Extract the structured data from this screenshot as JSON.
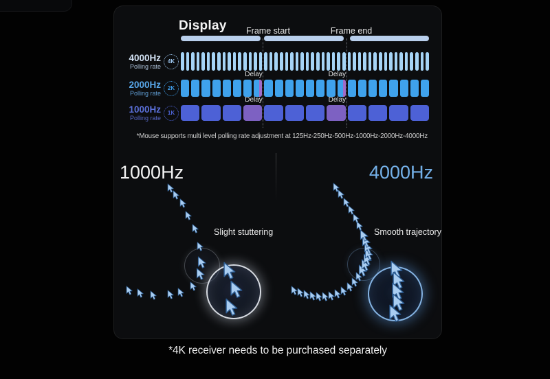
{
  "diagram": {
    "display_label": "Display",
    "frame_start_label": "Frame start",
    "frame_end_label": "Frame end",
    "delay_label": "Delay",
    "display_bar_color": "#b9cfec",
    "footnote": "*Mouse supports multi level polling rate adjustment at 125Hz-250Hz-500Hz-1000Hz-2000Hz-4000Hz",
    "rows": [
      {
        "rate": "4000Hz",
        "sub": "Polling rate",
        "badge": "4K",
        "bar_count": 48,
        "bar_color": "#a6d4f6",
        "label_color": "#d3e2f4",
        "sub_color": "#a9bed6",
        "badge_color": "#9cc6f0",
        "delay_full": [],
        "delay_edge": [],
        "delay_color": "",
        "delay_labels": false
      },
      {
        "rate": "2000Hz",
        "sub": "Polling rate",
        "badge": "2K",
        "bar_count": 24,
        "bar_color": "#3fa2ec",
        "label_color": "#58a7ea",
        "sub_color": "#5f9cd2",
        "badge_color": "#3e9ce8",
        "delay_full": [],
        "delay_edge": [
          7,
          15
        ],
        "delay_color": "#a06cc8",
        "delay_labels": true
      },
      {
        "rate": "1000Hz",
        "sub": "Polling rate",
        "badge": "1K",
        "bar_count": 12,
        "bar_color": "#4d61d6",
        "label_color": "#5b70da",
        "sub_color": "#5767c6",
        "badge_color": "#4d63d6",
        "delay_full": [
          3,
          7
        ],
        "delay_edge": [],
        "delay_color": "#7d61c2",
        "delay_labels": true
      }
    ]
  },
  "compare": {
    "left": {
      "title": "1000Hz",
      "title_color": "#f2f2f2",
      "caption": "Slight stuttering",
      "trail": [
        [
          22,
          207,
          "s"
        ],
        [
          38,
          211,
          "s"
        ],
        [
          57,
          214,
          "s"
        ],
        [
          82,
          213,
          "s"
        ],
        [
          97,
          210,
          "s"
        ],
        [
          115,
          201,
          "s"
        ],
        [
          125,
          183,
          "m"
        ],
        [
          127,
          166,
          "m"
        ],
        [
          125,
          143,
          "s"
        ],
        [
          118,
          117,
          "s"
        ],
        [
          108,
          98,
          "s"
        ],
        [
          100,
          80,
          "s"
        ],
        [
          90,
          68,
          "s"
        ],
        [
          82,
          58,
          "s"
        ]
      ],
      "zoom_cursors": [
        [
          167,
          178
        ],
        [
          177,
          205
        ],
        [
          170,
          231
        ]
      ]
    },
    "right": {
      "title": "4000Hz",
      "title_color": "#74b0e8",
      "caption": "Smooth trajectory",
      "trail": [
        [
          262,
          207,
          "s"
        ],
        [
          271,
          210,
          "s"
        ],
        [
          280,
          213,
          "s"
        ],
        [
          289,
          215,
          "s"
        ],
        [
          298,
          216,
          "s"
        ],
        [
          307,
          216,
          "s"
        ],
        [
          316,
          215,
          "s"
        ],
        [
          325,
          212,
          "s"
        ],
        [
          334,
          208,
          "s"
        ],
        [
          343,
          202,
          "s"
        ],
        [
          350,
          195,
          "s"
        ],
        [
          356,
          187,
          "s"
        ],
        [
          361,
          178,
          "m"
        ],
        [
          365,
          170,
          "m"
        ],
        [
          368,
          162,
          "m"
        ],
        [
          370,
          154,
          "m"
        ],
        [
          369,
          145,
          "m"
        ],
        [
          366,
          136,
          "m"
        ],
        [
          363,
          127,
          "m"
        ],
        [
          357,
          113,
          "s"
        ],
        [
          352,
          102,
          "s"
        ],
        [
          345,
          90,
          "s"
        ],
        [
          338,
          79,
          "s"
        ],
        [
          330,
          67,
          "s"
        ],
        [
          323,
          57,
          "s"
        ]
      ],
      "zoom_cursors": [
        [
          410,
          176
        ],
        [
          413,
          192
        ],
        [
          412,
          208
        ],
        [
          413,
          224
        ],
        [
          408,
          240
        ]
      ]
    }
  },
  "footer": {
    "note": "*4K receiver needs to be purchased separately"
  },
  "colors": {
    "cursor_fill": "#a9cdf1",
    "cursor_stroke": "#2c5c92"
  }
}
